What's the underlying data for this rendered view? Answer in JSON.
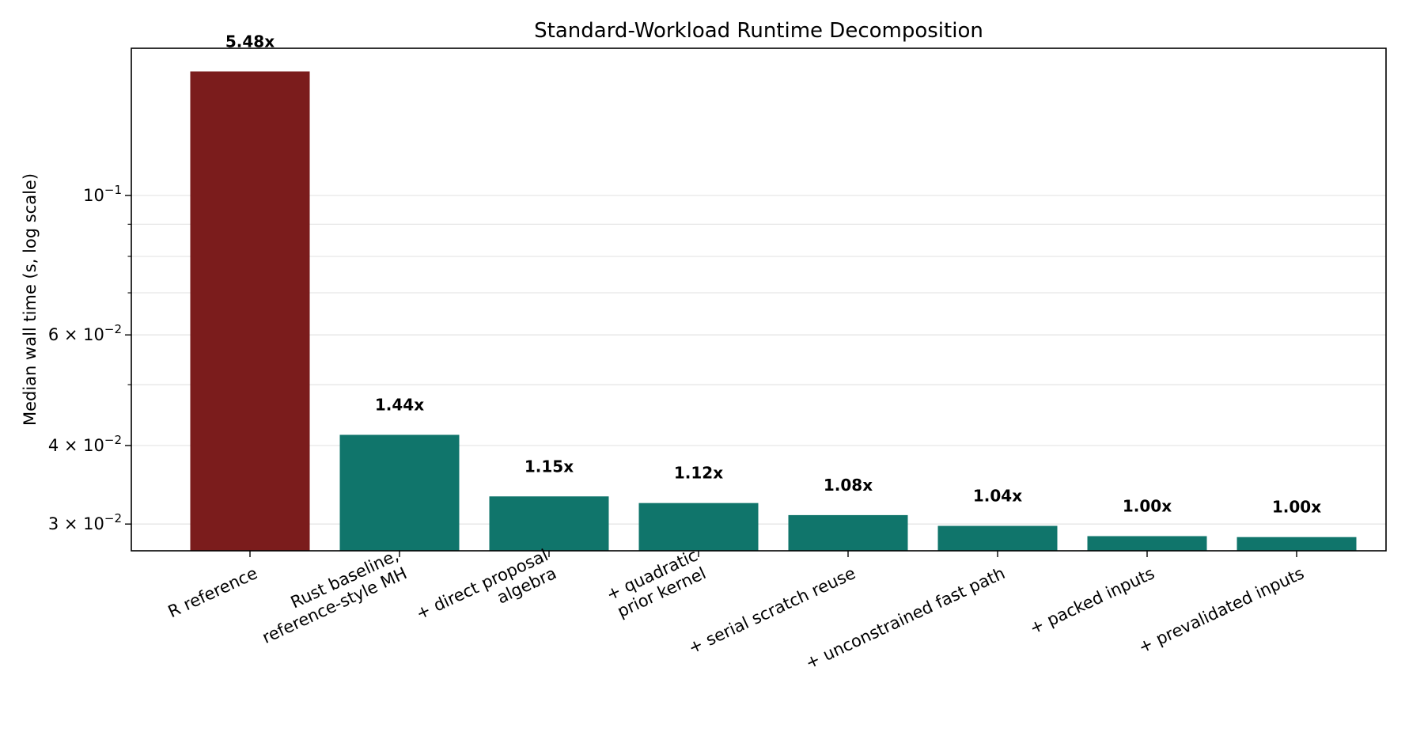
{
  "chart_data": {
    "type": "bar",
    "title": "Standard-Workload Runtime Decomposition",
    "xlabel": "",
    "ylabel": "Median wall time (s, log scale)",
    "yscale": "log",
    "ylim": [
      0.0272,
      0.1715
    ],
    "grid": "y-major-and-minor",
    "categories": [
      "R reference",
      "Rust baseline,\nreference-style MH",
      "+ direct proposal\nalgebra",
      "+ quadratic\nprior kernel",
      "+ serial scratch reuse",
      "+ unconstrained fast path",
      "+ packed inputs",
      "+ prevalidated inputs"
    ],
    "values": [
      0.1575,
      0.0416,
      0.0332,
      0.0324,
      0.031,
      0.0298,
      0.0287,
      0.0286
    ],
    "data_labels": [
      "5.48x",
      "1.44x",
      "1.15x",
      "1.12x",
      "1.08x",
      "1.04x",
      "1.00x",
      "1.00x"
    ],
    "colors": [
      "#7b1c1c",
      "#10756b",
      "#10756b",
      "#10756b",
      "#10756b",
      "#10756b",
      "#10756b",
      "#10756b"
    ],
    "yticks": [
      {
        "value": 0.1,
        "base": "10",
        "exp": "−1"
      },
      {
        "value": 0.06,
        "base": "6 × 10",
        "exp": "−2"
      },
      {
        "value": 0.04,
        "base": "4 × 10",
        "exp": "−2"
      },
      {
        "value": 0.03,
        "base": "3 × 10",
        "exp": "−2"
      }
    ],
    "minor_ticks": [
      0.09,
      0.08,
      0.07,
      0.05
    ]
  }
}
